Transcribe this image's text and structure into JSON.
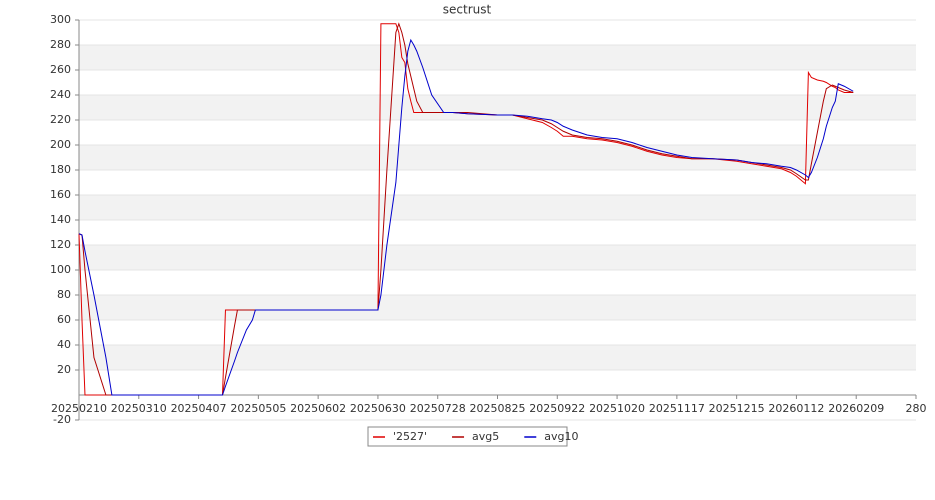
{
  "chart_data": {
    "type": "line",
    "title": "sectrust",
    "x": [
      0,
      1,
      2,
      5,
      9,
      11,
      20,
      30,
      40,
      48,
      49,
      52,
      53,
      56,
      58,
      59,
      80,
      100,
      101,
      102,
      103,
      106,
      107,
      108,
      109,
      110,
      111,
      112,
      113,
      115,
      118,
      122,
      125,
      130,
      140,
      145,
      150,
      155,
      158,
      160,
      162,
      165,
      170,
      175,
      180,
      185,
      190,
      195,
      200,
      205,
      212,
      220,
      225,
      230,
      235,
      238,
      240,
      243,
      244,
      245,
      247,
      249,
      250,
      252,
      253,
      254,
      256,
      259
    ],
    "series": [
      {
        "name": "'2527'",
        "color": "#e00000",
        "values": [
          129,
          60,
          0,
          0,
          0,
          0,
          0,
          0,
          0,
          0,
          68,
          68,
          68,
          68,
          68,
          68,
          68,
          68,
          297,
          297,
          297,
          297,
          290,
          270,
          266,
          245,
          235,
          226,
          226,
          226,
          226,
          226,
          226,
          225,
          224,
          224,
          221,
          218,
          214,
          211,
          207,
          207,
          205,
          204,
          202,
          199,
          195,
          192,
          190,
          189,
          189,
          187,
          185,
          183,
          181,
          178,
          175,
          169,
          258,
          254,
          252,
          251,
          250,
          247,
          246,
          244,
          242,
          242
        ]
      },
      {
        "name": "avg5",
        "color": "#b00000",
        "values": [
          129,
          128,
          100,
          30,
          0,
          0,
          0,
          0,
          0,
          0,
          14,
          55,
          68,
          68,
          68,
          68,
          68,
          68,
          100,
          140,
          180,
          290,
          297,
          290,
          280,
          265,
          255,
          245,
          235,
          226,
          226,
          226,
          226,
          226,
          224,
          224,
          222,
          220,
          217,
          214,
          211,
          208,
          206,
          205,
          203,
          200,
          196,
          193,
          191,
          189,
          189,
          188,
          186,
          184,
          182,
          180,
          177,
          172,
          172,
          185,
          210,
          235,
          245,
          248,
          247,
          246,
          244,
          242
        ]
      },
      {
        "name": "avg10",
        "color": "#0000cc",
        "values": [
          129,
          128,
          115,
          80,
          30,
          0,
          0,
          0,
          0,
          0,
          7,
          27,
          34,
          52,
          60,
          68,
          68,
          68,
          80,
          100,
          120,
          170,
          200,
          230,
          255,
          275,
          284,
          280,
          275,
          262,
          240,
          226,
          226,
          225,
          224,
          224,
          223,
          221,
          220,
          218,
          215,
          212,
          208,
          206,
          205,
          202,
          198,
          195,
          192,
          190,
          189,
          188,
          186,
          185,
          183,
          182,
          180,
          176,
          174,
          178,
          190,
          205,
          215,
          230,
          235,
          249,
          247,
          243
        ]
      }
    ],
    "xlim": [
      0,
      280
    ],
    "xticks": [
      {
        "value": 0,
        "label": "20250210"
      },
      {
        "value": 20,
        "label": "20250310"
      },
      {
        "value": 40,
        "label": "20250407"
      },
      {
        "value": 60,
        "label": "20250505"
      },
      {
        "value": 80,
        "label": "20250602"
      },
      {
        "value": 100,
        "label": "20250630"
      },
      {
        "value": 120,
        "label": "20250728"
      },
      {
        "value": 140,
        "label": "20250825"
      },
      {
        "value": 160,
        "label": "20250922"
      },
      {
        "value": 180,
        "label": "20251020"
      },
      {
        "value": 200,
        "label": "20251117"
      },
      {
        "value": 220,
        "label": "20251215"
      },
      {
        "value": 240,
        "label": "20260112"
      },
      {
        "value": 260,
        "label": "20260209"
      },
      280
    ],
    "ylim": [
      -20,
      300
    ],
    "yticks": [
      -20,
      20,
      40,
      60,
      80,
      100,
      120,
      140,
      160,
      180,
      200,
      220,
      240,
      260,
      280,
      300
    ],
    "grid": "bands"
  }
}
